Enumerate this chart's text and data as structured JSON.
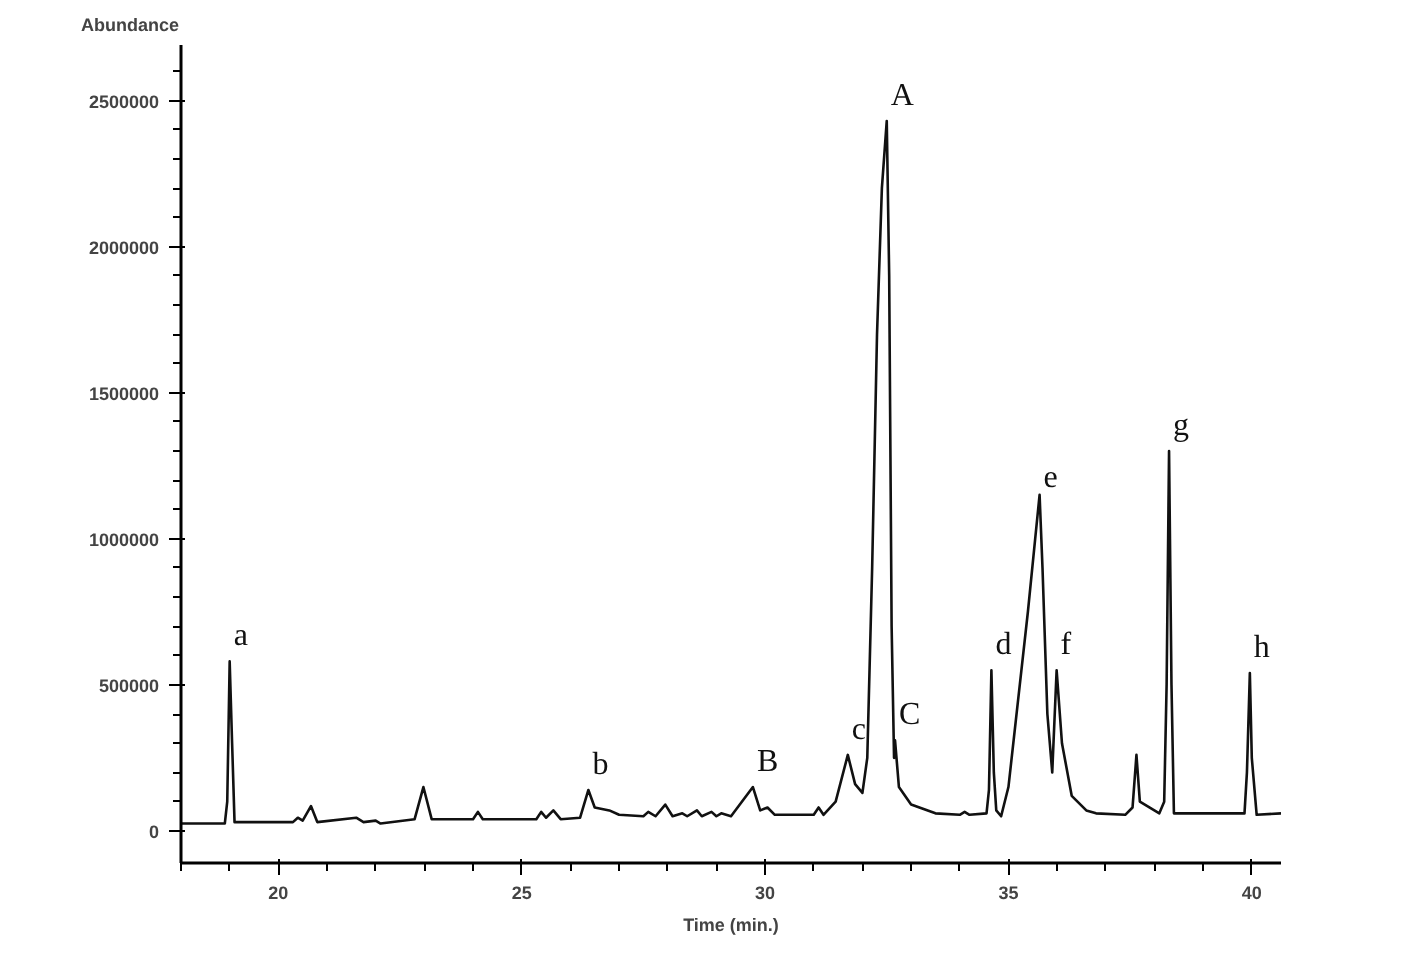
{
  "chart_data": {
    "type": "line",
    "xlabel": "Time (min.)",
    "ylabel": "Abundance",
    "x": [
      18.0,
      18.9,
      18.95,
      19.0,
      19.05,
      19.1,
      20.3,
      20.4,
      20.5,
      20.67,
      20.8,
      21.6,
      21.75,
      22.0,
      22.1,
      22.8,
      22.98,
      23.15,
      24.0,
      24.1,
      24.2,
      25.3,
      25.4,
      25.5,
      25.65,
      25.8,
      26.2,
      26.37,
      26.5,
      26.8,
      27.0,
      27.5,
      27.6,
      27.75,
      27.95,
      28.1,
      28.3,
      28.4,
      28.6,
      28.7,
      28.9,
      29.0,
      29.1,
      29.3,
      29.75,
      29.9,
      30.05,
      30.2,
      31.0,
      31.1,
      31.2,
      31.45,
      31.7,
      31.85,
      32.0,
      32.1,
      32.2,
      32.3,
      32.4,
      32.5,
      32.55,
      32.6,
      32.65,
      32.67,
      32.75,
      33.0,
      33.5,
      34.0,
      34.1,
      34.2,
      34.55,
      34.6,
      34.65,
      34.7,
      34.75,
      34.85,
      35.0,
      35.2,
      35.4,
      35.55,
      35.64,
      35.7,
      35.8,
      35.9,
      35.99,
      36.1,
      36.3,
      36.6,
      36.8,
      37.4,
      37.55,
      37.63,
      37.7,
      38.1,
      38.2,
      38.25,
      38.3,
      38.35,
      38.4,
      39.85,
      39.9,
      39.96,
      40.0,
      40.1,
      40.6
    ],
    "series": [
      {
        "color": "#111111",
        "values": [
          25000,
          25000,
          100000,
          580000,
          300000,
          30000,
          30000,
          45000,
          35000,
          85000,
          30000,
          45000,
          30000,
          35000,
          25000,
          40000,
          150000,
          40000,
          40000,
          65000,
          40000,
          40000,
          65000,
          45000,
          70000,
          40000,
          45000,
          140000,
          80000,
          70000,
          55000,
          50000,
          65000,
          50000,
          90000,
          50000,
          60000,
          50000,
          70000,
          50000,
          65000,
          50000,
          60000,
          50000,
          150000,
          70000,
          80000,
          55000,
          55000,
          80000,
          55000,
          100000,
          260000,
          160000,
          130000,
          250000,
          900000,
          1700000,
          2200000,
          2430000,
          1900000,
          700000,
          250000,
          310000,
          150000,
          90000,
          60000,
          55000,
          65000,
          55000,
          60000,
          140000,
          550000,
          200000,
          70000,
          50000,
          150000,
          450000,
          750000,
          1000000,
          1150000,
          900000,
          400000,
          200000,
          550000,
          300000,
          120000,
          70000,
          60000,
          55000,
          80000,
          260000,
          100000,
          60000,
          100000,
          500000,
          1300000,
          500000,
          60000,
          60000,
          200000,
          540000,
          250000,
          55000,
          60000
        ]
      }
    ],
    "xlim": [
      18.0,
      40.6
    ],
    "xticks": [
      20,
      25,
      30,
      35,
      40,
      {
        "value": 18,
        "label": null
      },
      {
        "value": 19,
        "label": null
      },
      {
        "value": 21,
        "label": null
      },
      {
        "value": 22,
        "label": null
      },
      {
        "value": 23,
        "label": null
      },
      {
        "value": 24,
        "label": null
      },
      {
        "value": 26,
        "label": null
      },
      {
        "value": 27,
        "label": null
      },
      {
        "value": 28,
        "label": null
      },
      {
        "value": 29,
        "label": null
      },
      {
        "value": 31,
        "label": null
      },
      {
        "value": 32,
        "label": null
      },
      {
        "value": 33,
        "label": null
      },
      {
        "value": 34,
        "label": null
      },
      {
        "value": 36,
        "label": null
      },
      {
        "value": 37,
        "label": null
      },
      {
        "value": 38,
        "label": null
      },
      {
        "value": 39,
        "label": null
      }
    ],
    "ylim": [
      -110000,
      2690000
    ],
    "yticks": [
      0,
      500000,
      1000000,
      1500000,
      2000000,
      2500000,
      {
        "value": 100000,
        "label": null
      },
      {
        "value": 200000,
        "label": null
      },
      {
        "value": 300000,
        "label": null
      },
      {
        "value": 400000,
        "label": null
      },
      {
        "value": 600000,
        "label": null
      },
      {
        "value": 700000,
        "label": null
      },
      {
        "value": 800000,
        "label": null
      },
      {
        "value": 900000,
        "label": null
      },
      {
        "value": 1100000,
        "label": null
      },
      {
        "value": 1200000,
        "label": null
      },
      {
        "value": 1300000,
        "label": null
      },
      {
        "value": 1400000,
        "label": null
      },
      {
        "value": 1600000,
        "label": null
      },
      {
        "value": 1700000,
        "label": null
      },
      {
        "value": 1800000,
        "label": null
      },
      {
        "value": 1900000,
        "label": null
      },
      {
        "value": 2100000,
        "label": null
      },
      {
        "value": 2200000,
        "label": null
      },
      {
        "value": 2300000,
        "label": null
      },
      {
        "value": 2400000,
        "label": null
      },
      {
        "value": 2600000,
        "label": null
      }
    ],
    "grid": false,
    "marker": "none",
    "line_style": "solid",
    "annotations": [
      {
        "text": "a",
        "x": 19.0,
        "y": 580000
      },
      {
        "text": "b",
        "x": 26.37,
        "y": 140000
      },
      {
        "text": "B",
        "x": 29.75,
        "y": 150000
      },
      {
        "text": "c",
        "x": 31.7,
        "y": 260000
      },
      {
        "text": "A",
        "x": 32.5,
        "y": 2430000
      },
      {
        "text": "C",
        "x": 32.67,
        "y": 310000
      },
      {
        "text": "d",
        "x": 34.65,
        "y": 550000
      },
      {
        "text": "e",
        "x": 35.64,
        "y": 1150000
      },
      {
        "text": "f",
        "x": 35.99,
        "y": 550000
      },
      {
        "text": "g",
        "x": 38.3,
        "y": 1300000
      },
      {
        "text": "h",
        "x": 39.96,
        "y": 540000
      }
    ]
  }
}
